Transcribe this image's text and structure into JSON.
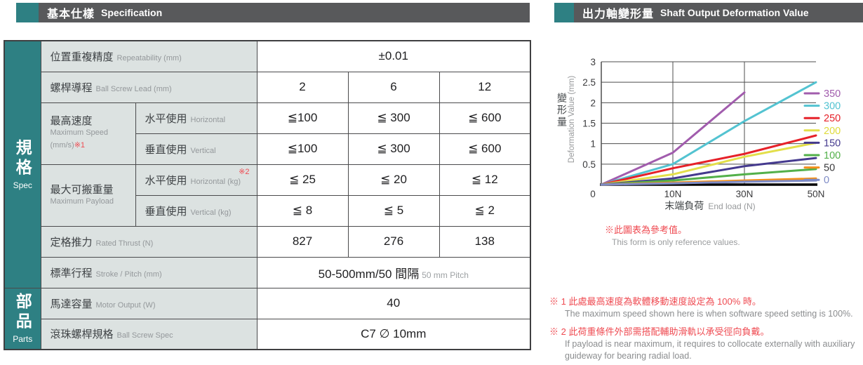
{
  "colors": {
    "teal": "#2E8083",
    "header_gray": "#58595B",
    "label_bg": "#DCE2E1",
    "note_red": "#EF4A51"
  },
  "left_header": {
    "zh": "基本仕樣",
    "en": "Specification"
  },
  "right_header": {
    "zh": "出力軸變形量",
    "en": "Shaft Output Deformation Value"
  },
  "sidebar": {
    "spec": {
      "zh": "規格",
      "en": "Spec"
    },
    "parts": {
      "zh": "部品",
      "en": "Parts"
    }
  },
  "table": {
    "repeatability": {
      "zh": "位置重複精度",
      "en": "Repeatability (mm)",
      "value": "±0.01"
    },
    "lead": {
      "zh": "螺桿導程",
      "en": "Ball Screw Lead (mm)",
      "values": [
        "2",
        "6",
        "12"
      ]
    },
    "max_speed": {
      "zh": "最高速度",
      "en": "Maximum Speed",
      "en2": "(mm/s)",
      "note": "※1",
      "horizontal": {
        "zh": "水平使用",
        "en": "Horizontal",
        "values": [
          "≦100",
          "≦ 300",
          "≦ 600"
        ]
      },
      "vertical": {
        "zh": "垂直使用",
        "en": "Vertical",
        "values": [
          "≦100",
          "≦ 300",
          "≦ 600"
        ]
      }
    },
    "max_payload": {
      "zh": "最大可搬重量",
      "en": "Maximum Payload",
      "horizontal": {
        "zh": "水平使用",
        "en": "Horizontal (kg)",
        "note": "※2",
        "values": [
          "≦ 25",
          "≦ 20",
          "≦ 12"
        ]
      },
      "vertical": {
        "zh": "垂直使用",
        "en": "Vertical (kg)",
        "values": [
          "≦ 8",
          "≦ 5",
          "≦ 2"
        ]
      }
    },
    "rated_thrust": {
      "zh": "定格推力",
      "en": "Rated Thrust (N)",
      "values": [
        "827",
        "276",
        "138"
      ]
    },
    "stroke": {
      "zh": "標準行程",
      "en": "Stroke / Pitch (mm)",
      "value": "50-500mm/50 間隔",
      "value_sub": "50 mm Pitch"
    },
    "motor_output": {
      "zh": "馬達容量",
      "en": "Motor Output (W)",
      "value": "40"
    },
    "ball_screw": {
      "zh": "滾珠螺桿規格",
      "en": "Ball Screw Spec",
      "value": "C7 ∅ 10mm"
    }
  },
  "chart_data": {
    "type": "line",
    "title_zh": "出力軸變形量",
    "title_en": "Shaft Output Deformation Value",
    "ylabel_zh": "變形量",
    "ylabel_en": "Deformation Value (mm)",
    "xlabel_zh": "末端負荷",
    "xlabel_en": "End load (N)",
    "ylim": [
      0,
      3
    ],
    "y_ticks": [
      0.5,
      1,
      1.5,
      2,
      2.5,
      3
    ],
    "x_ticks": [
      "0",
      "10N",
      "30N",
      "50N"
    ],
    "grid": "on",
    "legend_position": "right",
    "series": [
      {
        "name": "350",
        "color": "#A15CAD",
        "label_color": "#A15CAD",
        "x": [
          0,
          1,
          2
        ],
        "values": [
          0,
          0.78,
          2.25
        ]
      },
      {
        "name": "300",
        "color": "#53C3D1",
        "label_color": "#53C3D1",
        "x": [
          0,
          1,
          2,
          3
        ],
        "values": [
          0,
          0.5,
          1.55,
          2.5
        ]
      },
      {
        "name": "250",
        "color": "#E62129",
        "label_color": "#E62129",
        "x": [
          0,
          1,
          2,
          3
        ],
        "values": [
          0,
          0.4,
          0.75,
          1.2
        ]
      },
      {
        "name": "200",
        "color": "#E3DF4A",
        "label_color": "#DFDB3C",
        "x": [
          0,
          1,
          2,
          3
        ],
        "values": [
          0,
          0.25,
          0.68,
          1.02
        ]
      },
      {
        "name": "150",
        "color": "#453A8E",
        "label_color": "#453A8E",
        "x": [
          0,
          1,
          2,
          3
        ],
        "values": [
          0,
          0.15,
          0.45,
          0.65
        ]
      },
      {
        "name": "100",
        "color": "#53B04A",
        "label_color": "#53B04A",
        "x": [
          0,
          1,
          2,
          3
        ],
        "values": [
          0,
          0.1,
          0.25,
          0.38
        ]
      },
      {
        "name": "50",
        "color": "#F3901D",
        "label_color": "#3A3A3C",
        "x": [
          0,
          1,
          2,
          3
        ],
        "values": [
          0,
          0.05,
          0.1,
          0.15
        ]
      },
      {
        "name": "0",
        "color": "#7E8BC6",
        "label_color": "#7E8BC6",
        "x": [
          0,
          1,
          2,
          3
        ],
        "values": [
          0,
          0.03,
          0.07,
          0.1
        ]
      }
    ],
    "note_zh": "※此圖表為參考值。",
    "note_en": "This form is only reference values."
  },
  "footnotes": [
    {
      "zh": "※ 1 此處最高速度為軟體移動速度設定為 100% 時。",
      "en": "The maximum speed shown here is when software speed setting is 100%."
    },
    {
      "zh": "※ 2 此荷重條件外部需搭配輔助滑軌以承受徑向負戴。",
      "en": "If payload is near maximum, it requires to collocate externally with auxiliary guideway for bearing radial load."
    }
  ]
}
